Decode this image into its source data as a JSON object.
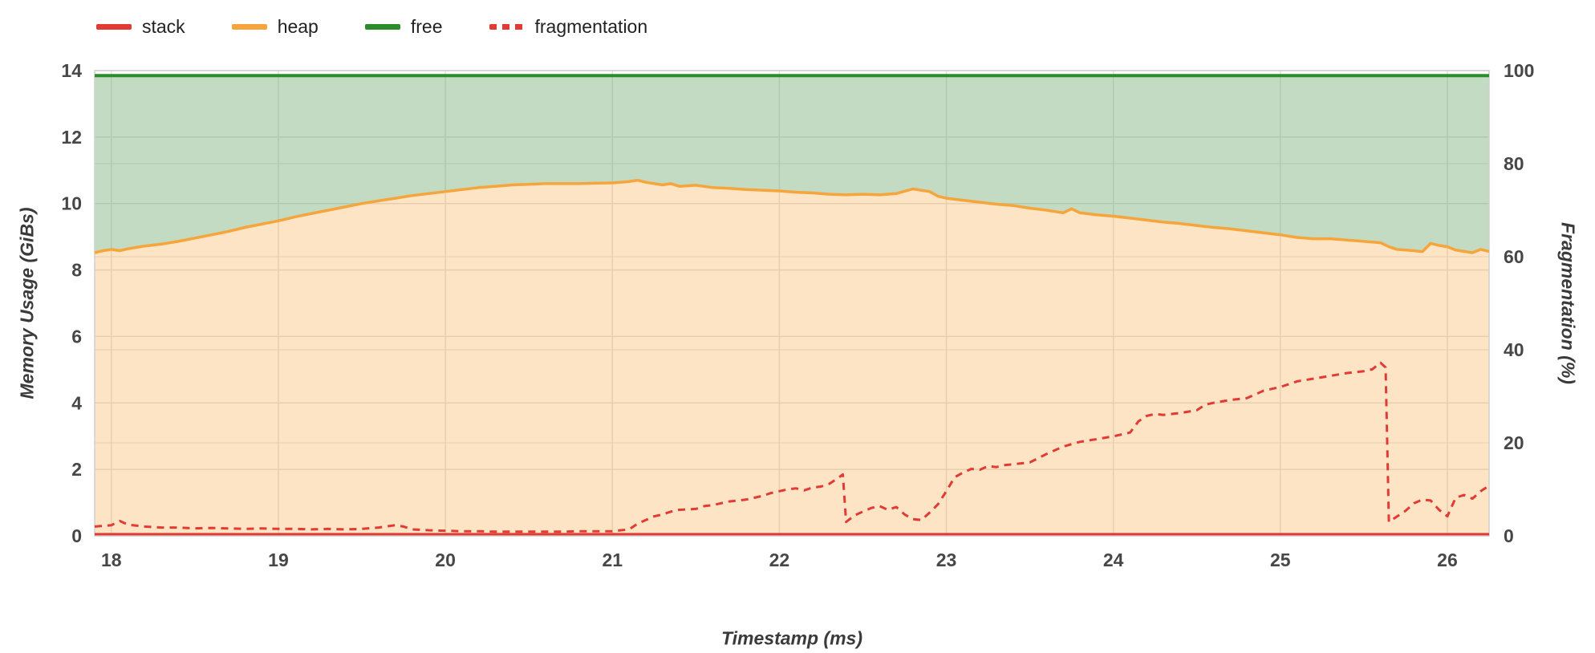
{
  "legend": {
    "items": [
      {
        "label": "stack",
        "color": "#e23b35",
        "dashed": false
      },
      {
        "label": "heap",
        "color": "#f6a53c",
        "dashed": false
      },
      {
        "label": "free",
        "color": "#2a8c2a",
        "dashed": false
      },
      {
        "label": "fragmentation",
        "color": "#e23b35",
        "dashed": true
      }
    ]
  },
  "chart_data": {
    "type": "area",
    "title": "",
    "xlabel": "Timestamp (ms)",
    "ylabel_left": "Memory Usage (GiBs)",
    "ylabel_right": "Fragmentation (%)",
    "xlim": [
      17.9,
      26.25
    ],
    "ylim_left": [
      0,
      14
    ],
    "ylim_right": [
      0,
      100
    ],
    "xticks": [
      18,
      19,
      20,
      21,
      22,
      23,
      24,
      25,
      26
    ],
    "yticks_left": [
      0,
      2,
      4,
      6,
      8,
      10,
      12,
      14
    ],
    "yticks_right": [
      0,
      20,
      40,
      60,
      80,
      100
    ],
    "grid": true,
    "legend_position": "top-left",
    "colors": {
      "grid": "#e0e0e0",
      "border": "#cfcfcf"
    },
    "series": [
      {
        "name": "free",
        "axis": "left",
        "style": "area",
        "color": "#2a8c2a",
        "fill": "rgba(110,170,110,0.42)",
        "points": [
          [
            17.9,
            13.85
          ],
          [
            26.25,
            13.85
          ]
        ]
      },
      {
        "name": "heap",
        "axis": "left",
        "style": "area",
        "color": "#f6a53c",
        "fill": "rgba(246,166,60,0.30)",
        "points": [
          [
            17.9,
            8.52
          ],
          [
            17.95,
            8.58
          ],
          [
            18.0,
            8.62
          ],
          [
            18.05,
            8.58
          ],
          [
            18.1,
            8.64
          ],
          [
            18.15,
            8.68
          ],
          [
            18.2,
            8.72
          ],
          [
            18.3,
            8.78
          ],
          [
            18.4,
            8.86
          ],
          [
            18.5,
            8.96
          ],
          [
            18.6,
            9.06
          ],
          [
            18.7,
            9.16
          ],
          [
            18.8,
            9.28
          ],
          [
            18.9,
            9.38
          ],
          [
            19.0,
            9.48
          ],
          [
            19.1,
            9.6
          ],
          [
            19.2,
            9.7
          ],
          [
            19.3,
            9.8
          ],
          [
            19.4,
            9.9
          ],
          [
            19.5,
            10.0
          ],
          [
            19.6,
            10.08
          ],
          [
            19.7,
            10.16
          ],
          [
            19.8,
            10.24
          ],
          [
            19.9,
            10.3
          ],
          [
            20.0,
            10.36
          ],
          [
            20.1,
            10.42
          ],
          [
            20.2,
            10.48
          ],
          [
            20.3,
            10.52
          ],
          [
            20.4,
            10.56
          ],
          [
            20.5,
            10.58
          ],
          [
            20.6,
            10.6
          ],
          [
            20.7,
            10.6
          ],
          [
            20.8,
            10.6
          ],
          [
            20.9,
            10.61
          ],
          [
            21.0,
            10.62
          ],
          [
            21.1,
            10.66
          ],
          [
            21.15,
            10.7
          ],
          [
            21.2,
            10.64
          ],
          [
            21.3,
            10.56
          ],
          [
            21.35,
            10.6
          ],
          [
            21.4,
            10.52
          ],
          [
            21.5,
            10.55
          ],
          [
            21.6,
            10.48
          ],
          [
            21.7,
            10.46
          ],
          [
            21.8,
            10.42
          ],
          [
            21.9,
            10.4
          ],
          [
            22.0,
            10.38
          ],
          [
            22.1,
            10.34
          ],
          [
            22.2,
            10.32
          ],
          [
            22.3,
            10.28
          ],
          [
            22.4,
            10.26
          ],
          [
            22.5,
            10.28
          ],
          [
            22.6,
            10.26
          ],
          [
            22.7,
            10.3
          ],
          [
            22.8,
            10.44
          ],
          [
            22.9,
            10.36
          ],
          [
            22.95,
            10.22
          ],
          [
            23.0,
            10.16
          ],
          [
            23.1,
            10.1
          ],
          [
            23.2,
            10.04
          ],
          [
            23.3,
            9.98
          ],
          [
            23.4,
            9.94
          ],
          [
            23.5,
            9.86
          ],
          [
            23.6,
            9.8
          ],
          [
            23.7,
            9.72
          ],
          [
            23.75,
            9.84
          ],
          [
            23.8,
            9.72
          ],
          [
            23.9,
            9.66
          ],
          [
            24.0,
            9.62
          ],
          [
            24.1,
            9.56
          ],
          [
            24.2,
            9.5
          ],
          [
            24.3,
            9.44
          ],
          [
            24.4,
            9.4
          ],
          [
            24.5,
            9.34
          ],
          [
            24.6,
            9.28
          ],
          [
            24.7,
            9.24
          ],
          [
            24.8,
            9.18
          ],
          [
            24.9,
            9.12
          ],
          [
            25.0,
            9.06
          ],
          [
            25.1,
            8.98
          ],
          [
            25.2,
            8.94
          ],
          [
            25.3,
            8.94
          ],
          [
            25.4,
            8.9
          ],
          [
            25.5,
            8.86
          ],
          [
            25.6,
            8.82
          ],
          [
            25.65,
            8.7
          ],
          [
            25.7,
            8.62
          ],
          [
            25.8,
            8.58
          ],
          [
            25.85,
            8.55
          ],
          [
            25.9,
            8.8
          ],
          [
            25.95,
            8.74
          ],
          [
            26.0,
            8.7
          ],
          [
            26.05,
            8.6
          ],
          [
            26.1,
            8.56
          ],
          [
            26.15,
            8.52
          ],
          [
            26.2,
            8.62
          ],
          [
            26.25,
            8.56
          ]
        ]
      },
      {
        "name": "stack",
        "axis": "left",
        "style": "line",
        "color": "#e23b35",
        "points": [
          [
            17.9,
            0.05
          ],
          [
            26.25,
            0.05
          ]
        ]
      },
      {
        "name": "fragmentation",
        "axis": "right",
        "style": "dashed-line",
        "color": "#e23b35",
        "points": [
          [
            17.9,
            2.0
          ],
          [
            18.0,
            2.3
          ],
          [
            18.05,
            3.2
          ],
          [
            18.1,
            2.4
          ],
          [
            18.2,
            2.0
          ],
          [
            18.3,
            1.8
          ],
          [
            18.4,
            1.8
          ],
          [
            18.5,
            1.6
          ],
          [
            18.6,
            1.7
          ],
          [
            18.7,
            1.6
          ],
          [
            18.8,
            1.5
          ],
          [
            18.9,
            1.6
          ],
          [
            19.0,
            1.5
          ],
          [
            19.1,
            1.5
          ],
          [
            19.2,
            1.4
          ],
          [
            19.3,
            1.5
          ],
          [
            19.4,
            1.4
          ],
          [
            19.5,
            1.5
          ],
          [
            19.6,
            1.8
          ],
          [
            19.7,
            2.3
          ],
          [
            19.75,
            2.0
          ],
          [
            19.8,
            1.4
          ],
          [
            19.9,
            1.2
          ],
          [
            20.0,
            1.1
          ],
          [
            20.1,
            1.0
          ],
          [
            20.2,
            1.0
          ],
          [
            20.3,
            0.9
          ],
          [
            20.4,
            0.9
          ],
          [
            20.5,
            0.9
          ],
          [
            20.6,
            0.9
          ],
          [
            20.7,
            0.9
          ],
          [
            20.8,
            1.0
          ],
          [
            20.9,
            1.0
          ],
          [
            21.0,
            1.0
          ],
          [
            21.1,
            1.4
          ],
          [
            21.15,
            2.6
          ],
          [
            21.2,
            3.4
          ],
          [
            21.25,
            4.2
          ],
          [
            21.3,
            4.6
          ],
          [
            21.35,
            5.2
          ],
          [
            21.4,
            5.6
          ],
          [
            21.5,
            5.8
          ],
          [
            21.55,
            6.4
          ],
          [
            21.6,
            6.6
          ],
          [
            21.7,
            7.4
          ],
          [
            21.8,
            7.8
          ],
          [
            21.9,
            8.6
          ],
          [
            21.95,
            9.2
          ],
          [
            22.0,
            9.6
          ],
          [
            22.05,
            10.0
          ],
          [
            22.1,
            10.2
          ],
          [
            22.15,
            9.8
          ],
          [
            22.2,
            10.4
          ],
          [
            22.25,
            10.6
          ],
          [
            22.3,
            11.2
          ],
          [
            22.35,
            12.4
          ],
          [
            22.38,
            13.2
          ],
          [
            22.4,
            3.0
          ],
          [
            22.45,
            4.4
          ],
          [
            22.5,
            5.2
          ],
          [
            22.55,
            6.0
          ],
          [
            22.6,
            6.4
          ],
          [
            22.65,
            5.6
          ],
          [
            22.7,
            6.2
          ],
          [
            22.75,
            4.6
          ],
          [
            22.8,
            3.6
          ],
          [
            22.85,
            3.4
          ],
          [
            22.9,
            5.0
          ],
          [
            22.95,
            6.8
          ],
          [
            23.0,
            9.6
          ],
          [
            23.05,
            12.6
          ],
          [
            23.1,
            13.6
          ],
          [
            23.15,
            14.4
          ],
          [
            23.2,
            14.2
          ],
          [
            23.25,
            15.0
          ],
          [
            23.3,
            14.8
          ],
          [
            23.35,
            15.2
          ],
          [
            23.4,
            15.4
          ],
          [
            23.5,
            15.8
          ],
          [
            23.6,
            17.6
          ],
          [
            23.65,
            18.4
          ],
          [
            23.7,
            19.2
          ],
          [
            23.8,
            20.2
          ],
          [
            23.9,
            20.8
          ],
          [
            24.0,
            21.4
          ],
          [
            24.05,
            21.8
          ],
          [
            24.1,
            22.2
          ],
          [
            24.15,
            24.6
          ],
          [
            24.2,
            25.8
          ],
          [
            24.25,
            26.2
          ],
          [
            24.3,
            26.0
          ],
          [
            24.4,
            26.4
          ],
          [
            24.5,
            27.0
          ],
          [
            24.55,
            28.2
          ],
          [
            24.6,
            28.6
          ],
          [
            24.7,
            29.2
          ],
          [
            24.8,
            29.6
          ],
          [
            24.85,
            30.4
          ],
          [
            24.9,
            31.2
          ],
          [
            25.0,
            32.0
          ],
          [
            25.05,
            32.6
          ],
          [
            25.1,
            33.2
          ],
          [
            25.2,
            33.8
          ],
          [
            25.3,
            34.4
          ],
          [
            25.4,
            35.0
          ],
          [
            25.5,
            35.4
          ],
          [
            25.55,
            35.8
          ],
          [
            25.6,
            37.2
          ],
          [
            25.63,
            36.2
          ],
          [
            25.65,
            3.0
          ],
          [
            25.7,
            4.2
          ],
          [
            25.75,
            5.4
          ],
          [
            25.8,
            7.0
          ],
          [
            25.85,
            7.8
          ],
          [
            25.9,
            7.6
          ],
          [
            25.95,
            5.6
          ],
          [
            26.0,
            4.2
          ],
          [
            26.05,
            8.2
          ],
          [
            26.1,
            8.8
          ],
          [
            26.15,
            8.0
          ],
          [
            26.2,
            9.6
          ],
          [
            26.25,
            10.8
          ]
        ]
      }
    ]
  }
}
